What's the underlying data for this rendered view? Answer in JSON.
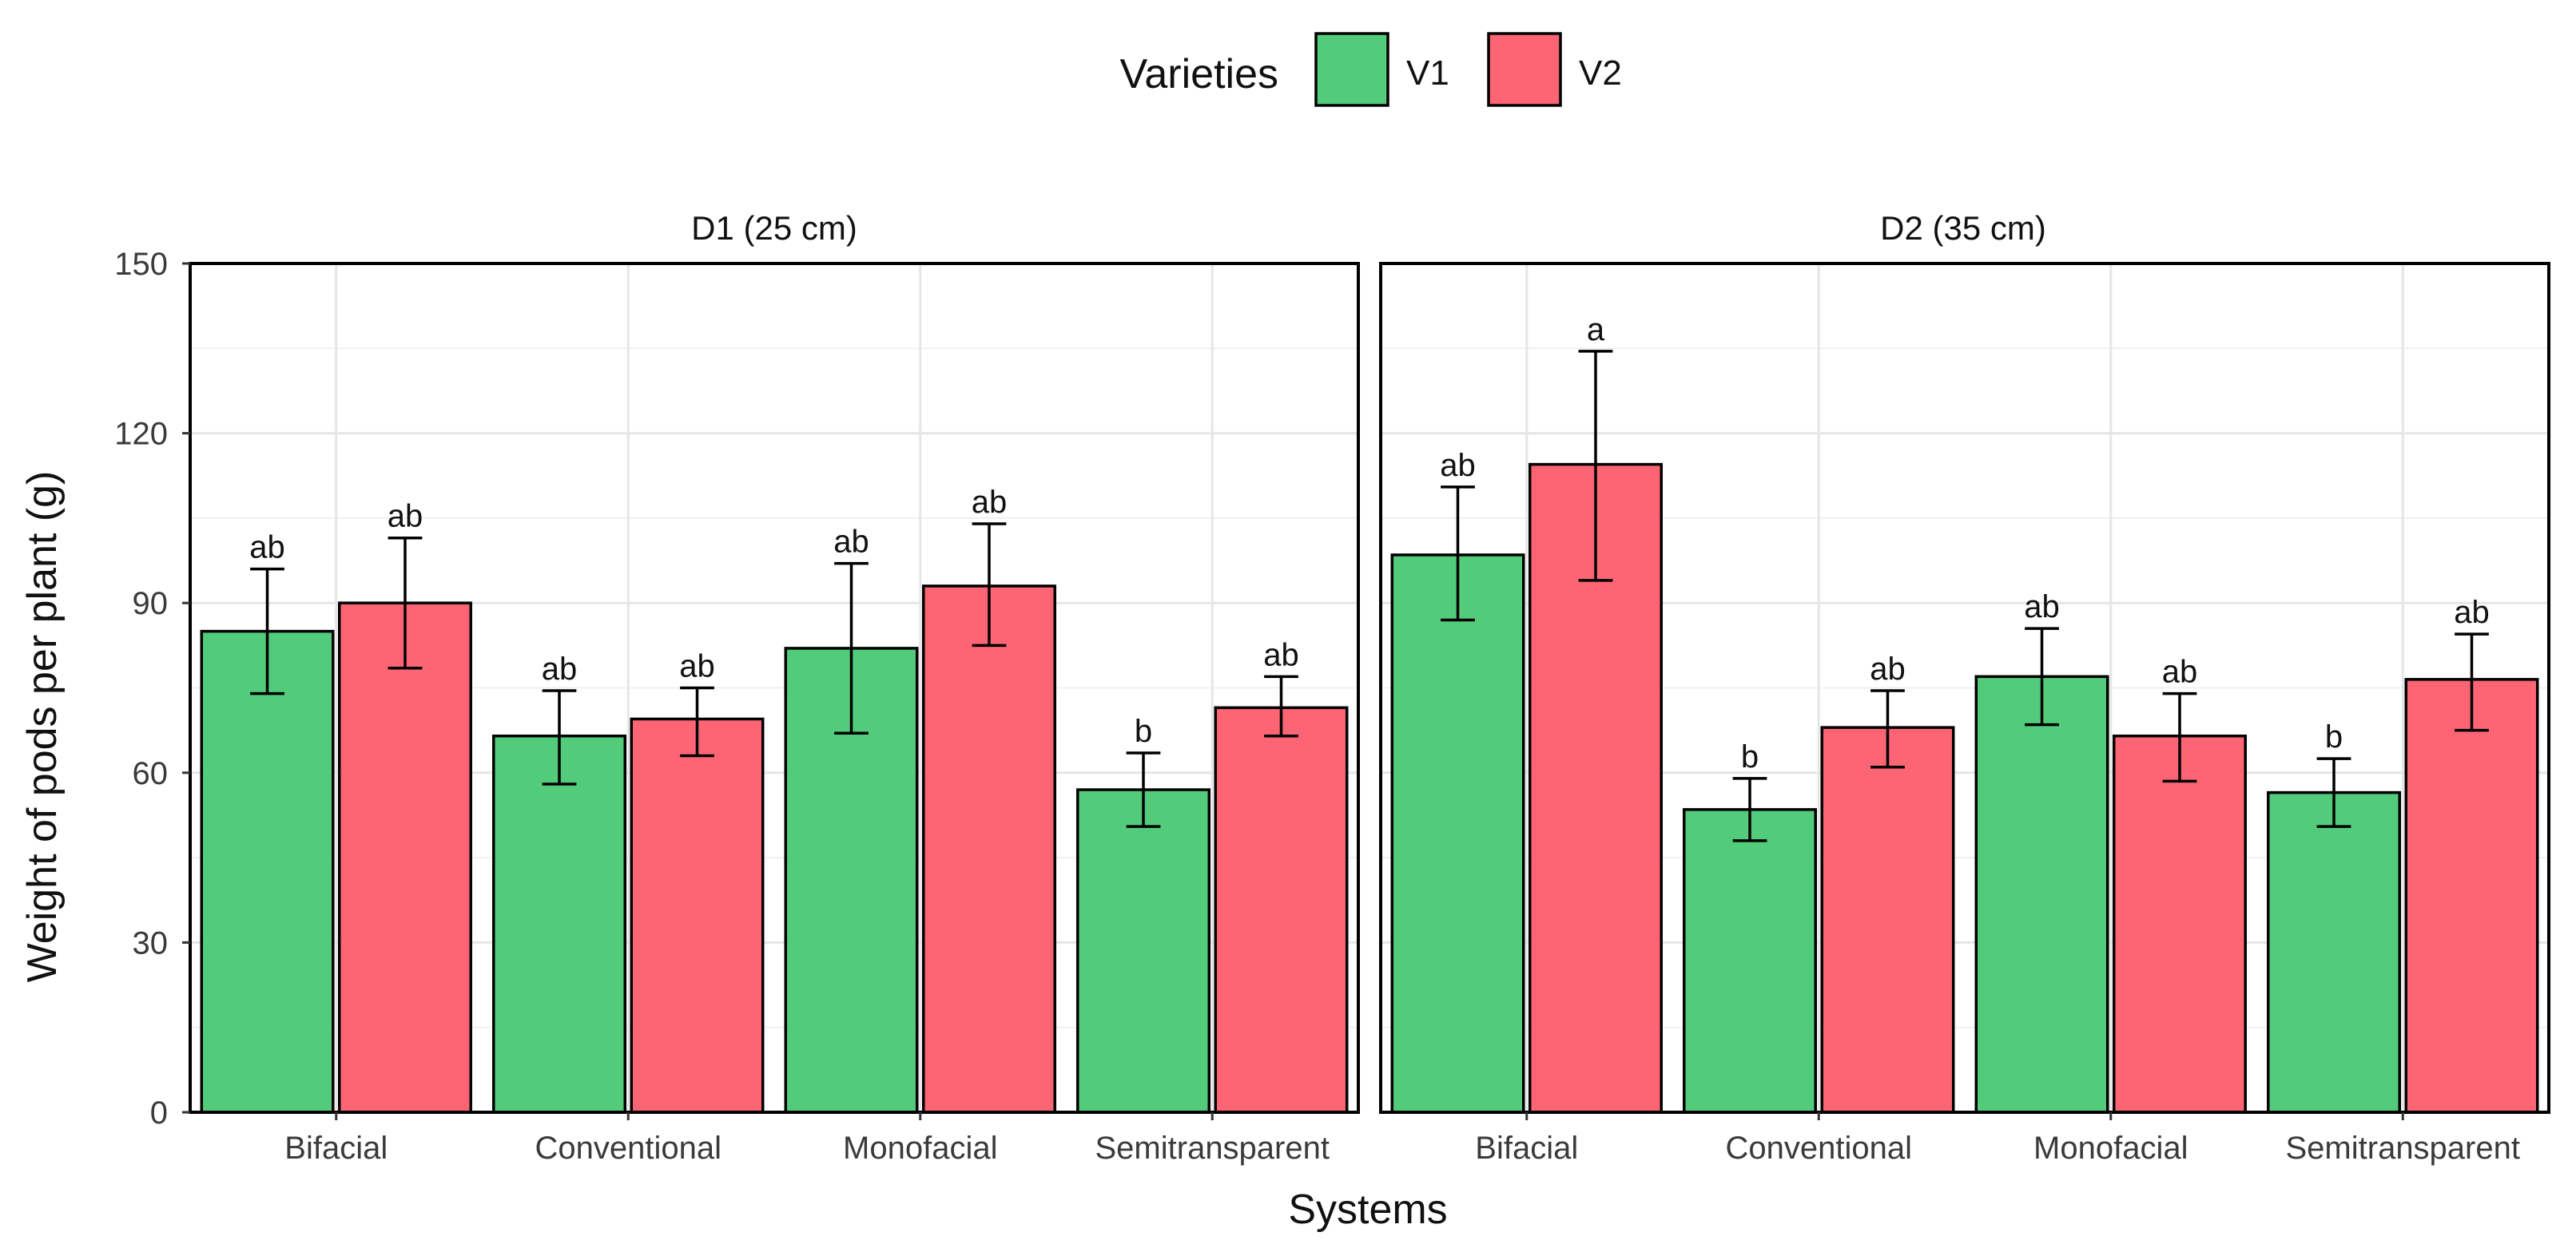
{
  "chart_data": {
    "type": "bar",
    "xlabel": "Systems",
    "ylabel": "Weight of pods per plant (g)",
    "ylim": [
      0,
      150
    ],
    "yticks": [
      0,
      30,
      60,
      90,
      120,
      150
    ],
    "grid": true,
    "legend": {
      "title": "Varieties",
      "placement": "top-center",
      "entries": [
        {
          "name": "V1",
          "color": "#52cc7a"
        },
        {
          "name": "V2",
          "color": "#fd6575"
        }
      ]
    },
    "categories": [
      "Bifacial",
      "Conventional",
      "Monofacial",
      "Semitransparent"
    ],
    "panels": [
      {
        "title": "D1 (25 cm)",
        "series": [
          {
            "name": "V1",
            "values": [
              85,
              66.5,
              82,
              57
            ],
            "err_low": [
              74,
              58,
              67,
              50.5
            ],
            "err_high": [
              96,
              74.5,
              97,
              63.5
            ],
            "labels": [
              "ab",
              "ab",
              "ab",
              "b"
            ]
          },
          {
            "name": "V2",
            "values": [
              90,
              69.5,
              93,
              71.5
            ],
            "err_low": [
              78.5,
              63,
              82.5,
              66.5
            ],
            "err_high": [
              101.5,
              75,
              104,
              77
            ],
            "labels": [
              "ab",
              "ab",
              "ab",
              "ab"
            ]
          }
        ]
      },
      {
        "title": "D2 (35 cm)",
        "series": [
          {
            "name": "V1",
            "values": [
              98.5,
              53.5,
              77,
              56.5
            ],
            "err_low": [
              87,
              48,
              68.5,
              50.5
            ],
            "err_high": [
              110.5,
              59,
              85.5,
              62.5
            ],
            "labels": [
              "ab",
              "b",
              "ab",
              "b"
            ]
          },
          {
            "name": "V2",
            "values": [
              114.5,
              68,
              66.5,
              76.5
            ],
            "err_low": [
              94,
              61,
              58.5,
              67.5
            ],
            "err_high": [
              134.5,
              74.5,
              74,
              84.5
            ],
            "labels": [
              "a",
              "ab",
              "ab",
              "ab"
            ]
          }
        ]
      }
    ]
  }
}
